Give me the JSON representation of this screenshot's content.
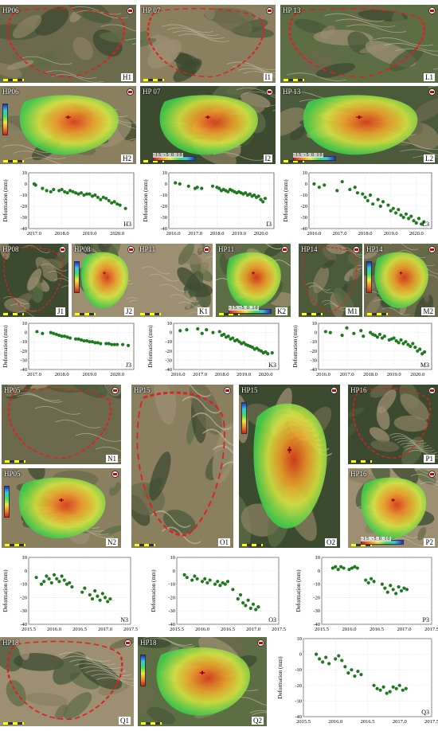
{
  "image_panels": [
    {
      "id": "H1",
      "title": "HP06",
      "label": "H1",
      "kind": "optical",
      "outline": true
    },
    {
      "id": "I1",
      "title": "HP 07",
      "label": "I1",
      "kind": "optical",
      "outline": true
    },
    {
      "id": "L1",
      "title": "HP 13",
      "label": "L1",
      "kind": "optical",
      "outline": true
    },
    {
      "id": "H2",
      "title": "HP06",
      "label": "H2",
      "kind": "insar",
      "bar": "v"
    },
    {
      "id": "I2",
      "title": "HP 07",
      "label": "I2",
      "kind": "insar",
      "bar": "h"
    },
    {
      "id": "L2",
      "title": "HP 13",
      "label": "L2",
      "kind": "insar",
      "bar": "h"
    },
    {
      "id": "J1",
      "title": "HP08",
      "label": "J1",
      "kind": "optical",
      "outline": true
    },
    {
      "id": "J2",
      "title": "HP08",
      "label": "J2",
      "kind": "insar",
      "bar": "v"
    },
    {
      "id": "K1",
      "title": "HP11",
      "label": "K1",
      "kind": "optical",
      "outline": false
    },
    {
      "id": "K2",
      "title": "HP11",
      "label": "K2",
      "kind": "insar",
      "bar": "h"
    },
    {
      "id": "M1",
      "title": "HP14",
      "label": "M1",
      "kind": "optical",
      "outline": true
    },
    {
      "id": "M2",
      "title": "HP14",
      "label": "M2",
      "kind": "insar",
      "bar": "v"
    },
    {
      "id": "N1",
      "title": "HP05",
      "label": "N1",
      "kind": "optical",
      "outline": true
    },
    {
      "id": "N2",
      "title": "HP05",
      "label": "N2",
      "kind": "insar",
      "bar": "v"
    },
    {
      "id": "O1",
      "title": "HP15",
      "label": "O1",
      "kind": "optical",
      "outline": true
    },
    {
      "id": "O2",
      "title": "HP15",
      "label": "O2",
      "kind": "insar",
      "bar": "v"
    },
    {
      "id": "P1",
      "title": "HP16",
      "label": "P1",
      "kind": "optical",
      "outline": true
    },
    {
      "id": "P2",
      "title": "HP16",
      "label": "P2",
      "kind": "insar",
      "bar": "h"
    },
    {
      "id": "Q1",
      "title": "HP18",
      "label": "Q1",
      "kind": "optical",
      "outline": true
    },
    {
      "id": "Q2",
      "title": "HP18",
      "label": "Q2",
      "kind": "insar",
      "bar": "v"
    }
  ],
  "colorbar_ticks": "-15  -5  0  10",
  "chart_data": [
    {
      "id": "H3",
      "type": "scatter",
      "label": "H3",
      "ylabel": "Deformation (mm)",
      "xlim": [
        2016.8,
        2020.6
      ],
      "ylim": [
        -40,
        10
      ],
      "xticks": [
        2017.0,
        2018.0,
        2019.0,
        2020.0
      ],
      "yticks": [
        -40,
        -30,
        -20,
        -10,
        0,
        10
      ],
      "x": [
        2017.0,
        2017.05,
        2017.3,
        2017.45,
        2017.6,
        2017.7,
        2017.9,
        2018.0,
        2018.1,
        2018.2,
        2018.3,
        2018.4,
        2018.5,
        2018.6,
        2018.7,
        2018.8,
        2018.9,
        2019.0,
        2019.1,
        2019.2,
        2019.3,
        2019.4,
        2019.5,
        2019.6,
        2019.7,
        2019.8,
        2019.9,
        2020.0,
        2020.1,
        2020.3
      ],
      "y": [
        0,
        -1,
        -4,
        -6,
        -7,
        -5,
        -6,
        -5,
        -7,
        -8,
        -6,
        -7,
        -8,
        -9,
        -8,
        -10,
        -9,
        -9,
        -11,
        -10,
        -12,
        -14,
        -12,
        -13,
        -15,
        -17,
        -16,
        -18,
        -19,
        -22
      ]
    },
    {
      "id": "I3",
      "type": "scatter",
      "label": "I3",
      "ylabel": "Deformation (mm)",
      "xlim": [
        2015.8,
        2020.6
      ],
      "ylim": [
        -40,
        10
      ],
      "xticks": [
        2016.0,
        2017.0,
        2018.0,
        2019.0,
        2020.0
      ],
      "yticks": [
        -40,
        -30,
        -20,
        -10,
        0,
        10
      ],
      "x": [
        2016.1,
        2016.3,
        2016.7,
        2017.0,
        2017.1,
        2017.3,
        2017.8,
        2018.0,
        2018.1,
        2018.2,
        2018.3,
        2018.4,
        2018.5,
        2018.6,
        2018.7,
        2018.8,
        2018.9,
        2019.0,
        2019.1,
        2019.2,
        2019.3,
        2019.4,
        2019.5,
        2019.6,
        2019.7,
        2019.8,
        2019.9,
        2020.0,
        2020.1,
        2020.2
      ],
      "y": [
        1,
        0,
        -2,
        -4,
        -3,
        -4,
        -2,
        -3,
        -4,
        -6,
        -5,
        -6,
        -7,
        -5,
        -6,
        -7,
        -8,
        -7,
        -8,
        -9,
        -8,
        -10,
        -9,
        -11,
        -10,
        -12,
        -11,
        -14,
        -16,
        -13
      ]
    },
    {
      "id": "L3",
      "type": "scatter",
      "label": "L3",
      "ylabel": "Deformation (mm)",
      "xlim": [
        2015.8,
        2020.6
      ],
      "ylim": [
        -40,
        10
      ],
      "xticks": [
        2016.0,
        2017.0,
        2018.0,
        2019.0,
        2020.0
      ],
      "yticks": [
        -40,
        -30,
        -20,
        -10,
        0,
        10
      ],
      "x": [
        2016.0,
        2016.2,
        2016.4,
        2016.9,
        2017.1,
        2017.4,
        2017.6,
        2017.7,
        2017.9,
        2018.0,
        2018.1,
        2018.2,
        2018.3,
        2018.5,
        2018.6,
        2018.7,
        2018.9,
        2019.0,
        2019.1,
        2019.2,
        2019.3,
        2019.4,
        2019.5,
        2019.6,
        2019.7,
        2019.8,
        2019.9,
        2020.0,
        2020.1,
        2020.2,
        2020.3
      ],
      "y": [
        0,
        -3,
        -1,
        -6,
        2,
        -5,
        -3,
        -8,
        -9,
        -12,
        -15,
        -10,
        -18,
        -14,
        -20,
        -16,
        -19,
        -24,
        -22,
        -26,
        -23,
        -28,
        -30,
        -27,
        -31,
        -29,
        -33,
        -35,
        -31,
        -36,
        -34
      ]
    },
    {
      "id": "J3",
      "type": "scatter",
      "label": "J3",
      "ylabel": "Deformation (mm)",
      "xlim": [
        2016.8,
        2020.6
      ],
      "ylim": [
        -40,
        10
      ],
      "xticks": [
        2017.0,
        2018.0,
        2019.0,
        2020.0
      ],
      "yticks": [
        -40,
        -30,
        -20,
        -10,
        0,
        10
      ],
      "x": [
        2017.1,
        2017.3,
        2017.6,
        2017.7,
        2017.8,
        2017.9,
        2018.0,
        2018.1,
        2018.2,
        2018.3,
        2018.5,
        2018.6,
        2018.7,
        2018.8,
        2018.9,
        2019.0,
        2019.1,
        2019.2,
        2019.3,
        2019.4,
        2019.6,
        2019.7,
        2019.8,
        2019.9,
        2020.0,
        2020.2,
        2020.4
      ],
      "y": [
        1,
        -1,
        0,
        -1,
        -2,
        -3,
        -4,
        -4,
        -5,
        -6,
        -7,
        -7,
        -8,
        -9,
        -9,
        -10,
        -10,
        -11,
        -11,
        -12,
        -12,
        -12,
        -13,
        -13,
        -13,
        -13,
        -14
      ]
    },
    {
      "id": "K3",
      "type": "scatter",
      "label": "K3",
      "ylabel": "Deformation (mm)",
      "xlim": [
        2015.8,
        2020.6
      ],
      "ylim": [
        -40,
        10
      ],
      "xticks": [
        2016.0,
        2017.0,
        2018.0,
        2019.0,
        2020.0
      ],
      "yticks": [
        -40,
        -30,
        -20,
        -10,
        0,
        10
      ],
      "x": [
        2016.1,
        2016.4,
        2016.9,
        2017.1,
        2017.3,
        2017.6,
        2017.9,
        2018.0,
        2018.1,
        2018.2,
        2018.3,
        2018.4,
        2018.5,
        2018.6,
        2018.7,
        2018.8,
        2018.9,
        2019.0,
        2019.1,
        2019.2,
        2019.3,
        2019.4,
        2019.5,
        2019.6,
        2019.7,
        2019.8,
        2019.9,
        2020.0,
        2020.1,
        2020.3
      ],
      "y": [
        2,
        3,
        4,
        -1,
        3,
        0,
        1,
        -3,
        -2,
        -5,
        -4,
        -7,
        -6,
        -9,
        -8,
        -10,
        -12,
        -11,
        -13,
        -14,
        -15,
        -16,
        -18,
        -17,
        -19,
        -20,
        -22,
        -21,
        -23,
        -22
      ]
    },
    {
      "id": "M3",
      "type": "scatter",
      "label": "M3",
      "ylabel": "Deformation (mm)",
      "xlim": [
        2015.8,
        2020.6
      ],
      "ylim": [
        -40,
        10
      ],
      "xticks": [
        2016.0,
        2017.0,
        2018.0,
        2019.0,
        2020.0
      ],
      "yticks": [
        -40,
        -30,
        -20,
        -10,
        0,
        10
      ],
      "x": [
        2016.1,
        2016.3,
        2016.8,
        2017.0,
        2017.3,
        2017.6,
        2017.7,
        2018.0,
        2018.1,
        2018.2,
        2018.3,
        2018.4,
        2018.5,
        2018.6,
        2018.8,
        2018.9,
        2019.0,
        2019.1,
        2019.2,
        2019.3,
        2019.4,
        2019.5,
        2019.6,
        2019.7,
        2019.8,
        2019.9,
        2020.0,
        2020.1,
        2020.2,
        2020.3
      ],
      "y": [
        1,
        0,
        -3,
        5,
        -1,
        2,
        -4,
        0,
        -2,
        -3,
        -5,
        -2,
        -6,
        -4,
        -8,
        -7,
        -6,
        -9,
        -11,
        -8,
        -12,
        -10,
        -13,
        -15,
        -12,
        -16,
        -20,
        -18,
        -23,
        -21
      ]
    },
    {
      "id": "N3",
      "type": "scatter",
      "label": "N3",
      "ylabel": "Deformation (mm)",
      "xlim": [
        2015.5,
        2017.5
      ],
      "ylim": [
        -40,
        10
      ],
      "xticks": [
        2015.5,
        2016.0,
        2016.5,
        2017.0,
        2017.5
      ],
      "yticks": [
        -40,
        -30,
        -20,
        -10,
        0,
        10
      ],
      "x": [
        2015.65,
        2015.75,
        2015.8,
        2015.85,
        2015.9,
        2015.95,
        2016.0,
        2016.05,
        2016.1,
        2016.15,
        2016.2,
        2016.25,
        2016.3,
        2016.35,
        2016.55,
        2016.6,
        2016.7,
        2016.75,
        2016.8,
        2016.85,
        2016.9,
        2016.95,
        2017.0,
        2017.05,
        2017.1
      ],
      "y": [
        -5,
        -10,
        -8,
        -4,
        -6,
        -9,
        -3,
        -6,
        -8,
        -4,
        -7,
        -10,
        -9,
        -12,
        -16,
        -13,
        -18,
        -21,
        -15,
        -19,
        -22,
        -17,
        -20,
        -23,
        -21
      ]
    },
    {
      "id": "O3",
      "type": "scatter",
      "label": "O3",
      "ylabel": "Deformation (mm)",
      "xlim": [
        2015.5,
        2017.5
      ],
      "ylim": [
        -40,
        10
      ],
      "xticks": [
        2015.5,
        2016.0,
        2016.5,
        2017.0,
        2017.5
      ],
      "yticks": [
        -40,
        -30,
        -20,
        -10,
        0,
        10
      ],
      "x": [
        2015.65,
        2015.7,
        2015.8,
        2015.85,
        2015.9,
        2016.0,
        2016.05,
        2016.1,
        2016.15,
        2016.25,
        2016.3,
        2016.35,
        2016.4,
        2016.45,
        2016.5,
        2016.6,
        2016.7,
        2016.75,
        2016.8,
        2016.85,
        2016.9,
        2016.95,
        2017.0,
        2017.05,
        2017.1
      ],
      "y": [
        -3,
        -5,
        -7,
        -4,
        -6,
        -8,
        -6,
        -9,
        -7,
        -10,
        -8,
        -11,
        -9,
        -10,
        -8,
        -14,
        -21,
        -18,
        -24,
        -26,
        -22,
        -28,
        -25,
        -29,
        -27
      ]
    },
    {
      "id": "P3",
      "type": "scatter",
      "label": "P3",
      "ylabel": "Deformation (mm)",
      "xlim": [
        2015.5,
        2017.5
      ],
      "ylim": [
        -40,
        10
      ],
      "xticks": [
        2015.5,
        2016.0,
        2016.5,
        2017.0,
        2017.5
      ],
      "yticks": [
        -40,
        -30,
        -20,
        -10,
        0,
        10
      ],
      "x": [
        2015.7,
        2015.75,
        2015.8,
        2015.85,
        2015.9,
        2016.0,
        2016.05,
        2016.1,
        2016.15,
        2016.3,
        2016.35,
        2016.4,
        2016.45,
        2016.6,
        2016.65,
        2016.7,
        2016.75,
        2016.8,
        2016.85,
        2016.9,
        2016.95,
        2017.0,
        2017.05
      ],
      "y": [
        2,
        3,
        1,
        3,
        2,
        1,
        2,
        3,
        2,
        -7,
        -9,
        -6,
        -8,
        -10,
        -13,
        -16,
        -11,
        -14,
        -17,
        -12,
        -15,
        -13,
        -14
      ]
    },
    {
      "id": "Q3",
      "type": "scatter",
      "label": "Q3",
      "ylabel": "Deformation (mm)",
      "xlim": [
        2015.5,
        2017.5
      ],
      "ylim": [
        -40,
        10
      ],
      "xticks": [
        2015.5,
        2016.0,
        2016.5,
        2017.0,
        2017.5
      ],
      "yticks": [
        -40,
        -30,
        -20,
        -10,
        0,
        10
      ],
      "x": [
        2015.7,
        2015.75,
        2015.8,
        2015.85,
        2015.9,
        2016.0,
        2016.05,
        2016.1,
        2016.15,
        2016.2,
        2016.25,
        2016.3,
        2016.35,
        2016.4,
        2016.6,
        2016.65,
        2016.7,
        2016.75,
        2016.8,
        2016.85,
        2016.9,
        2016.95,
        2017.0,
        2017.05,
        2017.1
      ],
      "y": [
        0,
        -3,
        -5,
        -2,
        -6,
        -3,
        -1,
        -4,
        -8,
        -12,
        -10,
        -14,
        -11,
        -13,
        -20,
        -22,
        -23,
        -21,
        -25,
        -24,
        -21,
        -22,
        -20,
        -23,
        -22
      ]
    }
  ],
  "colors": {
    "point": "#1f7a1f",
    "outline": "#e02020",
    "frame": "#999999"
  }
}
